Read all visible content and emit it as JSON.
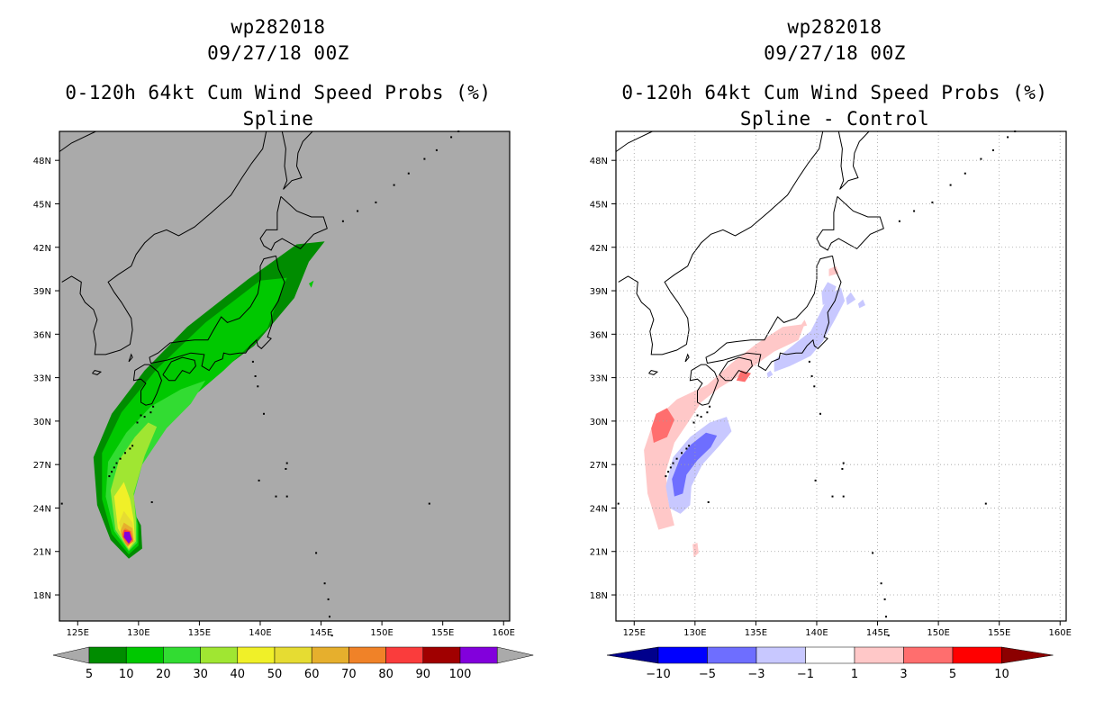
{
  "chart_data": [
    {
      "type": "heatmap",
      "title_lines": [
        "wp282018",
        "09/27/18 00Z",
        "0-120h 64kt Cum Wind Speed Probs (%)",
        "Spline"
      ],
      "x_ticks": [
        "125E",
        "130E",
        "135E",
        "140E",
        "145E",
        "150E",
        "155E",
        "160E"
      ],
      "y_ticks": [
        "48N",
        "45N",
        "42N",
        "39N",
        "36N",
        "33N",
        "30N",
        "27N",
        "24N",
        "21N",
        "18N"
      ],
      "xlim": [
        123.5,
        160.5
      ],
      "ylim": [
        16.2,
        50.0
      ],
      "background": "#aaaaaa",
      "colorbar": {
        "labels": [
          "5",
          "10",
          "20",
          "30",
          "40",
          "50",
          "60",
          "70",
          "80",
          "90",
          "100"
        ],
        "colors": [
          "#008c00",
          "#00c800",
          "#32dc32",
          "#a0e632",
          "#f0f028",
          "#e6dc32",
          "#e6af2d",
          "#f08228",
          "#fa3c3c",
          "#a00000",
          "#8200dc"
        ],
        "end_colors": [
          "#aaaaaa",
          "#aaaaaa"
        ]
      }
    },
    {
      "type": "heatmap",
      "title_lines": [
        "wp282018",
        "09/27/18 00Z",
        "0-120h 64kt Cum Wind Speed Probs (%)",
        "Spline - Control"
      ],
      "x_ticks": [
        "125E",
        "130E",
        "135E",
        "140E",
        "145E",
        "150E",
        "155E",
        "160E"
      ],
      "y_ticks": [
        "48N",
        "45N",
        "42N",
        "39N",
        "36N",
        "33N",
        "30N",
        "27N",
        "24N",
        "21N",
        "18N"
      ],
      "xlim": [
        123.5,
        160.5
      ],
      "ylim": [
        16.2,
        50.0
      ],
      "background": "#ffffff",
      "colorbar": {
        "labels": [
          "−10",
          "−5",
          "−3",
          "−1",
          "1",
          "3",
          "5",
          "10"
        ],
        "colors": [
          "#0000ff",
          "#6e6eff",
          "#c8c8ff",
          "#ffffff",
          "#ffc8c8",
          "#ff6e6e",
          "#ff0000"
        ],
        "end_colors": [
          "#00008c",
          "#8c0000"
        ]
      }
    }
  ]
}
